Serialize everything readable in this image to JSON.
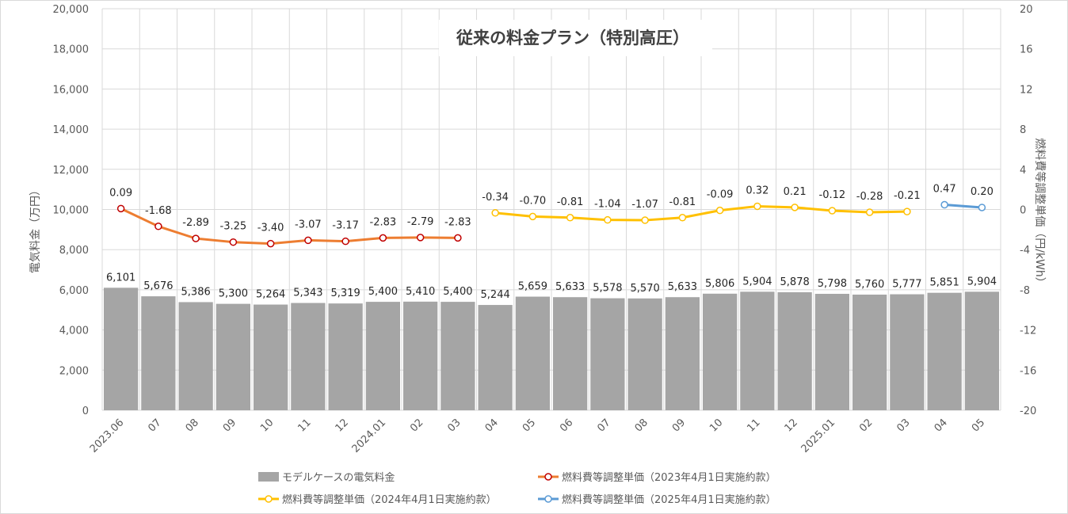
{
  "chart_data": {
    "type": "bar+line",
    "title": "従来の料金プラン（特別高圧）",
    "categories": [
      "2023.06",
      "07",
      "08",
      "09",
      "10",
      "11",
      "12",
      "2024.01",
      "02",
      "03",
      "04",
      "05",
      "06",
      "07",
      "08",
      "09",
      "10",
      "11",
      "12",
      "2025.01",
      "02",
      "03",
      "04",
      "05"
    ],
    "ylabel_left": "電気料金（万円）",
    "ylabel_right": "燃料費等調整単価（円/kWh）",
    "ylim_left": [
      0,
      20000
    ],
    "ylim_right": [
      -20,
      20
    ],
    "yticks_left": [
      "0",
      "2,000",
      "4,000",
      "6,000",
      "8,000",
      "10,000",
      "12,000",
      "14,000",
      "16,000",
      "18,000",
      "20,000"
    ],
    "yticks_right": [
      "-20",
      "-16",
      "-12",
      "-8",
      "-4",
      "0",
      "4",
      "8",
      "12",
      "16",
      "20"
    ],
    "grid": true,
    "legend_position": "bottom",
    "bar_series": {
      "name": "モデルケースの電気料金",
      "color": "#a5a5a5",
      "values": [
        6101,
        5676,
        5386,
        5300,
        5264,
        5343,
        5319,
        5400,
        5410,
        5400,
        5244,
        5659,
        5633,
        5578,
        5570,
        5633,
        5806,
        5904,
        5878,
        5798,
        5760,
        5777,
        5851,
        5904
      ],
      "labels": [
        "6,101",
        "5,676",
        "5,386",
        "5,300",
        "5,264",
        "5,343",
        "5,319",
        "5,400",
        "5,410",
        "5,400",
        "5,244",
        "5,659",
        "5,633",
        "5,578",
        "5,570",
        "5,633",
        "5,806",
        "5,904",
        "5,878",
        "5,798",
        "5,760",
        "5,777",
        "5,851",
        "5,904"
      ]
    },
    "line_series": [
      {
        "name": "燃料費等調整単価（2023年4月1日実施約款）",
        "color": "#ed7d31",
        "marker_color": "#c00000",
        "start_index": 0,
        "values": [
          0.09,
          -1.68,
          -2.89,
          -3.25,
          -3.4,
          -3.07,
          -3.17,
          -2.83,
          -2.79,
          -2.83
        ],
        "labels": [
          "0.09",
          "-1.68",
          "-2.89",
          "-3.25",
          "-3.40",
          "-3.07",
          "-3.17",
          "-2.83",
          "-2.79",
          "-2.83"
        ]
      },
      {
        "name": "燃料費等調整単価（2024年4月1日実施約款）",
        "color": "#ffc000",
        "marker_color": "#ffc000",
        "start_index": 10,
        "values": [
          -0.34,
          -0.7,
          -0.81,
          -1.04,
          -1.07,
          -0.81,
          -0.09,
          0.32,
          0.21,
          -0.12,
          -0.28,
          -0.21
        ],
        "labels": [
          "-0.34",
          "-0.70",
          "-0.81",
          "-1.04",
          "-1.07",
          "-0.81",
          "-0.09",
          "0.32",
          "0.21",
          "-0.12",
          "-0.28",
          "-0.21"
        ]
      },
      {
        "name": "燃料費等調整単価（2025年4月1日実施約款）",
        "color": "#5b9bd5",
        "marker_color": "#5b9bd5",
        "start_index": 22,
        "values": [
          0.47,
          0.2
        ],
        "labels": [
          "0.47",
          "0.20"
        ]
      }
    ]
  }
}
